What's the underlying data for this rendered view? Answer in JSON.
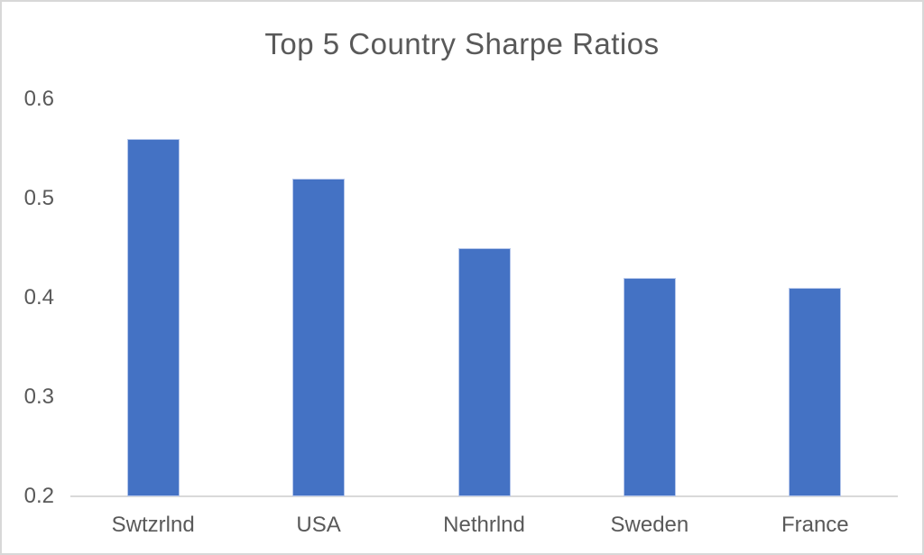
{
  "window": {
    "background_color": "#ffffff",
    "border_color": "#d8d8d8"
  },
  "chart_data": {
    "type": "bar",
    "title": "Top 5 Country Sharpe Ratios",
    "categories": [
      "Swtzrlnd",
      "USA",
      "Nethrlnd",
      "Sweden",
      "France"
    ],
    "values": [
      0.56,
      0.52,
      0.45,
      0.42,
      0.41
    ],
    "series_name": "Sharpe Ratio",
    "xlabel": "",
    "ylabel": "",
    "ylim": [
      0.2,
      0.6
    ],
    "ytick_step": 0.1,
    "ytick_labels": [
      "0.6",
      "0.5",
      "0.4",
      "0.3",
      "0.2"
    ],
    "grid": false,
    "legend": false,
    "bar_color": "#4472C4",
    "bar_border_color": "#b6c7eb",
    "text_color": "#595959",
    "axis_line_color": "#d9d9d9"
  }
}
